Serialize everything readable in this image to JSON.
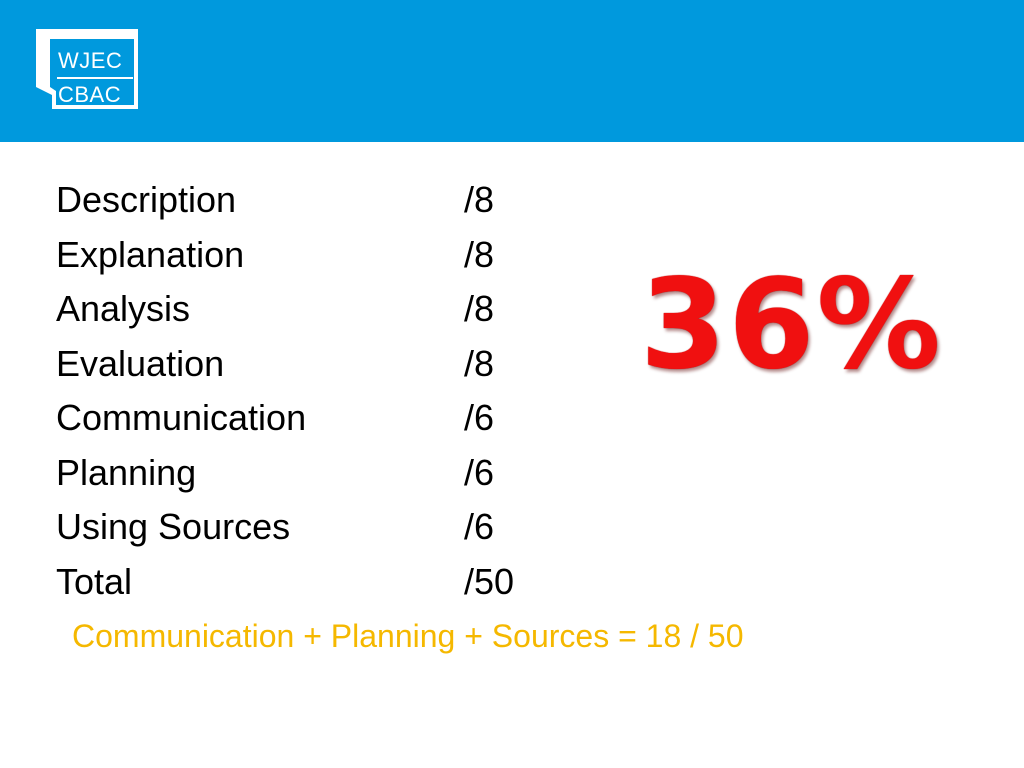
{
  "logo": {
    "line1": "WJEC",
    "line2": "CBAC"
  },
  "colors": {
    "header": "#0099dd",
    "formula": "#f5b800",
    "percent": "#f01010"
  },
  "scores": [
    {
      "label": "Description",
      "max": "/8"
    },
    {
      "label": "Explanation",
      "max": "/8"
    },
    {
      "label": "Analysis",
      "max": "/8"
    },
    {
      "label": "Evaluation",
      "max": "/8"
    },
    {
      "label": "Communication",
      "max": "/6"
    },
    {
      "label": "Planning",
      "max": "/6"
    },
    {
      "label": "Using Sources",
      "max": "/6"
    },
    {
      "label": "Total",
      "max": "/50"
    }
  ],
  "formula": "Communication + Planning + Sources = 18 / 50",
  "percentage": "36%"
}
